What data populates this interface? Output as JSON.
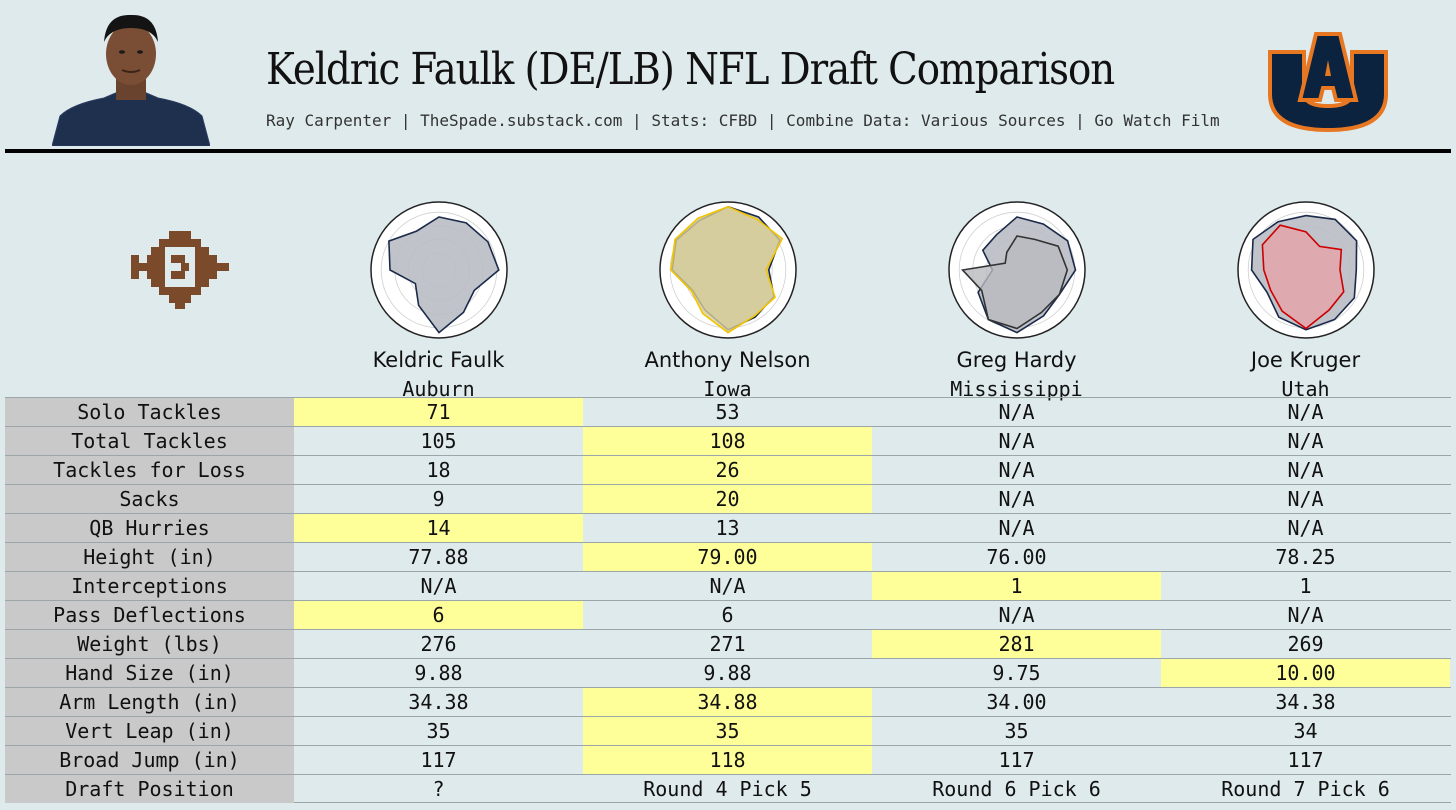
{
  "header": {
    "title": "Keldric Faulk (DE/LB) NFL Draft Comparison",
    "subtitle": "Ray Carpenter | TheSpade.substack.com | Stats: CFBD | Combine Data: Various Sources | Go Watch Film"
  },
  "logo": {
    "name": "auburn-au-logo-icon",
    "navy": "#0c2340",
    "orange": "#e87722"
  },
  "brand_icon": {
    "name": "spade-brand-icon",
    "color": "#7a4a2a"
  },
  "colors": {
    "background": "#dfeaec",
    "highlight": "#ffff99",
    "label_bg": "#c9c9c9"
  },
  "players": [
    {
      "name": "Keldric Faulk",
      "school": "Auburn",
      "radar_color": "#1b2a4a",
      "radar_fill": "#c4c8cf"
    },
    {
      "name": "Anthony Nelson",
      "school": "Iowa",
      "radar_color": "#f2c400",
      "radar_fill": "#d8ce99"
    },
    {
      "name": "Greg Hardy",
      "school": "Mississippi",
      "radar_color": "#333333",
      "radar_fill": "#b8babe"
    },
    {
      "name": "Joe Kruger",
      "school": "Utah",
      "radar_color": "#cc0000",
      "radar_fill": "#e5a4a8"
    }
  ],
  "table": {
    "rows": [
      {
        "label": "Solo Tackles",
        "values": [
          "71",
          "53",
          "N/A",
          "N/A"
        ],
        "highlight": 0
      },
      {
        "label": "Total Tackles",
        "values": [
          "105",
          "108",
          "N/A",
          "N/A"
        ],
        "highlight": 1
      },
      {
        "label": "Tackles for Loss",
        "values": [
          "18",
          "26",
          "N/A",
          "N/A"
        ],
        "highlight": 1
      },
      {
        "label": "Sacks",
        "values": [
          "9",
          "20",
          "N/A",
          "N/A"
        ],
        "highlight": 1
      },
      {
        "label": "QB Hurries",
        "values": [
          "14",
          "13",
          "N/A",
          "N/A"
        ],
        "highlight": 0
      },
      {
        "label": "Height (in)",
        "values": [
          "77.88",
          "79.00",
          "76.00",
          "78.25"
        ],
        "highlight": 1
      },
      {
        "label": "Interceptions",
        "values": [
          "N/A",
          "N/A",
          "1",
          "1"
        ],
        "highlight": 2
      },
      {
        "label": "Pass Deflections",
        "values": [
          "6",
          "6",
          "N/A",
          "N/A"
        ],
        "highlight": 0
      },
      {
        "label": "Weight (lbs)",
        "values": [
          "276",
          "271",
          "281",
          "269"
        ],
        "highlight": 2
      },
      {
        "label": "Hand Size (in)",
        "values": [
          "9.88",
          "9.88",
          "9.75",
          "10.00"
        ],
        "highlight": 3
      },
      {
        "label": "Arm Length (in)",
        "values": [
          "34.38",
          "34.88",
          "34.00",
          "34.38"
        ],
        "highlight": 1
      },
      {
        "label": "Vert Leap (in)",
        "values": [
          "35",
          "35",
          "35",
          "34"
        ],
        "highlight": 1
      },
      {
        "label": "Broad Jump (in)",
        "values": [
          "117",
          "118",
          "117",
          "117"
        ],
        "highlight": 1
      },
      {
        "label": "Draft Position",
        "values": [
          "?",
          "Round 4 Pick 5",
          "Round 6 Pick 6",
          "Round 7 Pick 6"
        ],
        "highlight": -1
      }
    ]
  }
}
